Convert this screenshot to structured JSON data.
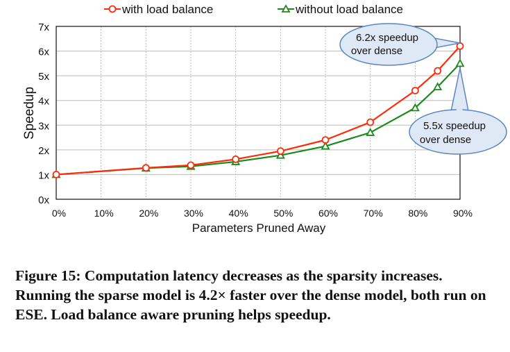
{
  "chart_data": {
    "type": "line",
    "xlabel": "Parameters Pruned Away",
    "ylabel": "Speedup",
    "x": [
      0,
      20,
      30,
      40,
      50,
      60,
      70,
      80,
      85,
      90
    ],
    "xticks": [
      "0%",
      "10%",
      "20%",
      "30%",
      "40%",
      "50%",
      "60%",
      "70%",
      "80%",
      "90%"
    ],
    "xlim": [
      0,
      90
    ],
    "yticks": [
      "0x",
      "1x",
      "2x",
      "3x",
      "4x",
      "5x",
      "6x",
      "7x"
    ],
    "ylim": [
      0,
      7
    ],
    "grid": true,
    "legend_position": "top",
    "series": [
      {
        "name": "with load balance",
        "color": "#ff2a0a",
        "marker": "circle",
        "values": [
          1.0,
          1.27,
          1.38,
          1.62,
          1.95,
          2.4,
          3.12,
          4.4,
          5.2,
          6.2
        ]
      },
      {
        "name": "without load balance",
        "color": "#1a8a1a",
        "marker": "triangle",
        "values": [
          1.0,
          1.26,
          1.33,
          1.52,
          1.78,
          2.15,
          2.7,
          3.7,
          4.55,
          5.5
        ]
      }
    ],
    "annotations": [
      {
        "line1": "6.2x speedup",
        "line2": "over dense"
      },
      {
        "line1": "5.5x speedup",
        "line2": "over dense"
      }
    ]
  },
  "caption": "Figure 15: Computation latency decreases as the sparsity increases. Running the sparse model is 4.2× faster over the dense model, both run on ESE. Load balance aware pruning helps speedup."
}
